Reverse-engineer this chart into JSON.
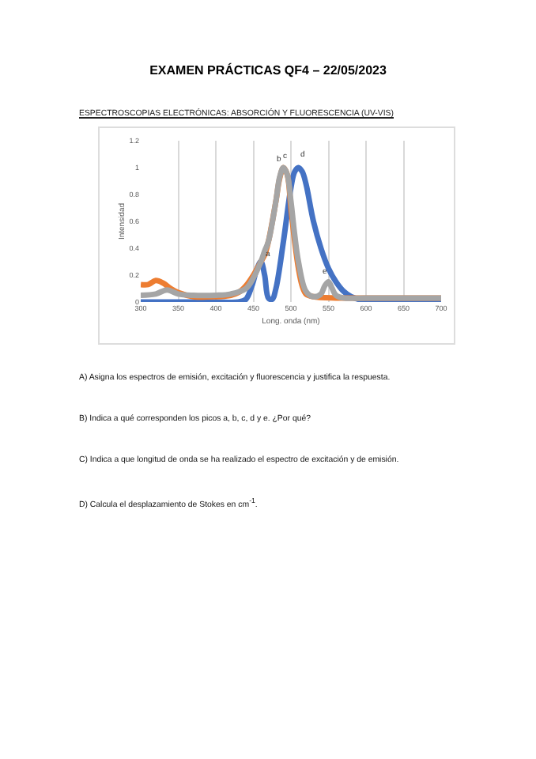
{
  "chart_data": {
    "type": "line",
    "title": "EXAMEN PRÁCTICAS QF4 – 22/05/2023",
    "subtitle": "ESPECTROSCOPIAS ELECTRÓNICAS: ABSORCIÓN Y FLUORESCENCIA (UV-VIS)",
    "xlabel": "Long. onda (nm)",
    "ylabel": "Intensidad",
    "xlim": [
      300,
      700
    ],
    "xticks": [
      300,
      350,
      400,
      450,
      500,
      550,
      600,
      650,
      700
    ],
    "ylim": [
      0,
      1.2
    ],
    "yticks": [
      0,
      0.2,
      0.4,
      0.6,
      0.8,
      1,
      1.2
    ],
    "grid": "x",
    "marker": "none",
    "line_style": "solid",
    "series": [
      {
        "color": "#4472c4",
        "x": [
          300,
          350,
          400,
          430,
          440,
          448,
          455,
          460,
          465,
          470,
          475,
          480,
          490,
          500,
          505,
          510,
          515,
          520,
          530,
          540,
          550,
          560,
          570,
          580,
          590,
          600,
          650,
          700
        ],
        "values": [
          0,
          0,
          0,
          0,
          0.02,
          0.12,
          0.25,
          0.3,
          0.2,
          0.03,
          0.02,
          0.1,
          0.45,
          0.85,
          0.97,
          1.0,
          0.97,
          0.88,
          0.6,
          0.4,
          0.25,
          0.15,
          0.08,
          0.04,
          0.02,
          0.01,
          0,
          0
        ]
      },
      {
        "color": "#ed7d31",
        "x": [
          300,
          310,
          320,
          330,
          340,
          350,
          370,
          400,
          420,
          430,
          440,
          450,
          460,
          465,
          470,
          480,
          485,
          490,
          495,
          500,
          505,
          510,
          515,
          520,
          530,
          560,
          600,
          650,
          700
        ],
        "values": [
          0.13,
          0.13,
          0.16,
          0.14,
          0.1,
          0.07,
          0.04,
          0.04,
          0.05,
          0.07,
          0.12,
          0.2,
          0.3,
          0.35,
          0.45,
          0.75,
          0.92,
          1.0,
          0.95,
          0.7,
          0.45,
          0.25,
          0.12,
          0.06,
          0.04,
          0.03,
          0.03,
          0.03,
          0.03
        ]
      },
      {
        "color": "#a5a5a5",
        "x": [
          300,
          320,
          335,
          350,
          370,
          400,
          420,
          440,
          450,
          460,
          465,
          470,
          480,
          485,
          490,
          495,
          500,
          505,
          510,
          520,
          530,
          540,
          545,
          550,
          555,
          560,
          570,
          600,
          650,
          700
        ],
        "values": [
          0.05,
          0.06,
          0.09,
          0.06,
          0.05,
          0.05,
          0.06,
          0.1,
          0.18,
          0.3,
          0.38,
          0.45,
          0.75,
          0.93,
          1.0,
          0.95,
          0.75,
          0.5,
          0.3,
          0.08,
          0.04,
          0.06,
          0.12,
          0.15,
          0.1,
          0.05,
          0.03,
          0.03,
          0.03,
          0.03
        ]
      }
    ],
    "annotations": [
      {
        "text": "a",
        "x": 470,
        "y": 0.3
      },
      {
        "text": "b",
        "x": 484,
        "y": 1.0
      },
      {
        "text": "c",
        "x": 493,
        "y": 1.02
      },
      {
        "text": "d",
        "x": 515,
        "y": 1.03
      },
      {
        "text": "e",
        "x": 545,
        "y": 0.17
      },
      "A) Asigna los espectros de emisión, excitación y fluorescencia y justifica la respuesta.",
      "B) Indica a qué corresponden los picos a, b, c, d y e. ¿Por qué?",
      "C) Indica a que longitud de onda se ha realizado el espectro de excitación y de emisión.",
      "D) Calcula el desplazamiento de Stokes en cm$^{-1}$."
    ]
  }
}
